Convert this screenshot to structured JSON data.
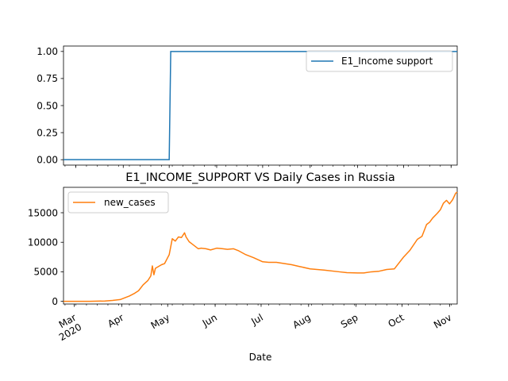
{
  "chart_data": [
    {
      "type": "line",
      "title": "",
      "xlabel": "",
      "ylabel": "",
      "ylim": [
        -0.05,
        1.05
      ],
      "yticks": [
        "0.00",
        "0.25",
        "0.50",
        "0.75",
        "1.00"
      ],
      "legend": {
        "placement": "upper right"
      },
      "series": [
        {
          "name": "E1_Income support",
          "color": "#1f77b4",
          "x": [
            "2020-02-22",
            "2020-05-01",
            "2020-05-02",
            "2020-11-05"
          ],
          "values": [
            0,
            0,
            1,
            1
          ]
        }
      ]
    },
    {
      "type": "line",
      "title": "E1_INCOME_SUPPORT VS Daily Cases in Russia",
      "xlabel": "Date",
      "ylabel": "",
      "ylim": [
        -450,
        19300
      ],
      "yticks": [
        "0",
        "5000",
        "10000",
        "15000"
      ],
      "xticks": [
        "Mar\n2020",
        "Apr",
        "May",
        "Jun",
        "Jul",
        "Aug",
        "Sep",
        "Oct",
        "Nov"
      ],
      "legend": {
        "placement": "upper left"
      },
      "series": [
        {
          "name": "new_cases",
          "color": "#ff7f0e",
          "x": [
            "2020-02-22",
            "2020-03-10",
            "2020-03-20",
            "2020-03-25",
            "2020-03-30",
            "2020-04-01",
            "2020-04-05",
            "2020-04-08",
            "2020-04-11",
            "2020-04-14",
            "2020-04-17",
            "2020-04-19",
            "2020-04-20",
            "2020-04-21",
            "2020-04-22",
            "2020-04-24",
            "2020-04-26",
            "2020-04-28",
            "2020-04-30",
            "2020-05-01",
            "2020-05-03",
            "2020-05-05",
            "2020-05-07",
            "2020-05-09",
            "2020-05-11",
            "2020-05-12",
            "2020-05-14",
            "2020-05-16",
            "2020-05-18",
            "2020-05-20",
            "2020-05-22",
            "2020-05-25",
            "2020-05-28",
            "2020-06-01",
            "2020-06-05",
            "2020-06-08",
            "2020-06-12",
            "2020-06-15",
            "2020-06-20",
            "2020-06-25",
            "2020-07-01",
            "2020-07-05",
            "2020-07-10",
            "2020-07-15",
            "2020-07-20",
            "2020-07-25",
            "2020-08-01",
            "2020-08-10",
            "2020-08-20",
            "2020-08-25",
            "2020-09-01",
            "2020-09-05",
            "2020-09-10",
            "2020-09-15",
            "2020-09-20",
            "2020-09-25",
            "2020-10-01",
            "2020-10-05",
            "2020-10-10",
            "2020-10-13",
            "2020-10-16",
            "2020-10-18",
            "2020-10-20",
            "2020-10-23",
            "2020-10-25",
            "2020-10-27",
            "2020-10-29",
            "2020-10-31",
            "2020-11-02",
            "2020-11-04",
            "2020-11-05"
          ],
          "values": [
            0,
            0,
            60,
            150,
            300,
            500,
            900,
            1300,
            1800,
            2800,
            3500,
            4300,
            6000,
            4500,
            5600,
            5900,
            6200,
            6400,
            7400,
            7900,
            10600,
            10200,
            10900,
            10800,
            11600,
            10900,
            10100,
            9700,
            9300,
            8900,
            9000,
            8900,
            8700,
            9000,
            8900,
            8800,
            8900,
            8600,
            7900,
            7400,
            6700,
            6600,
            6600,
            6400,
            6200,
            5900,
            5500,
            5300,
            5000,
            4850,
            4800,
            4800,
            5000,
            5100,
            5400,
            5500,
            7500,
            8600,
            10500,
            11000,
            13000,
            13400,
            14100,
            14900,
            15500,
            16600,
            17100,
            16500,
            17200,
            18300,
            18500
          ]
        }
      ]
    }
  ]
}
